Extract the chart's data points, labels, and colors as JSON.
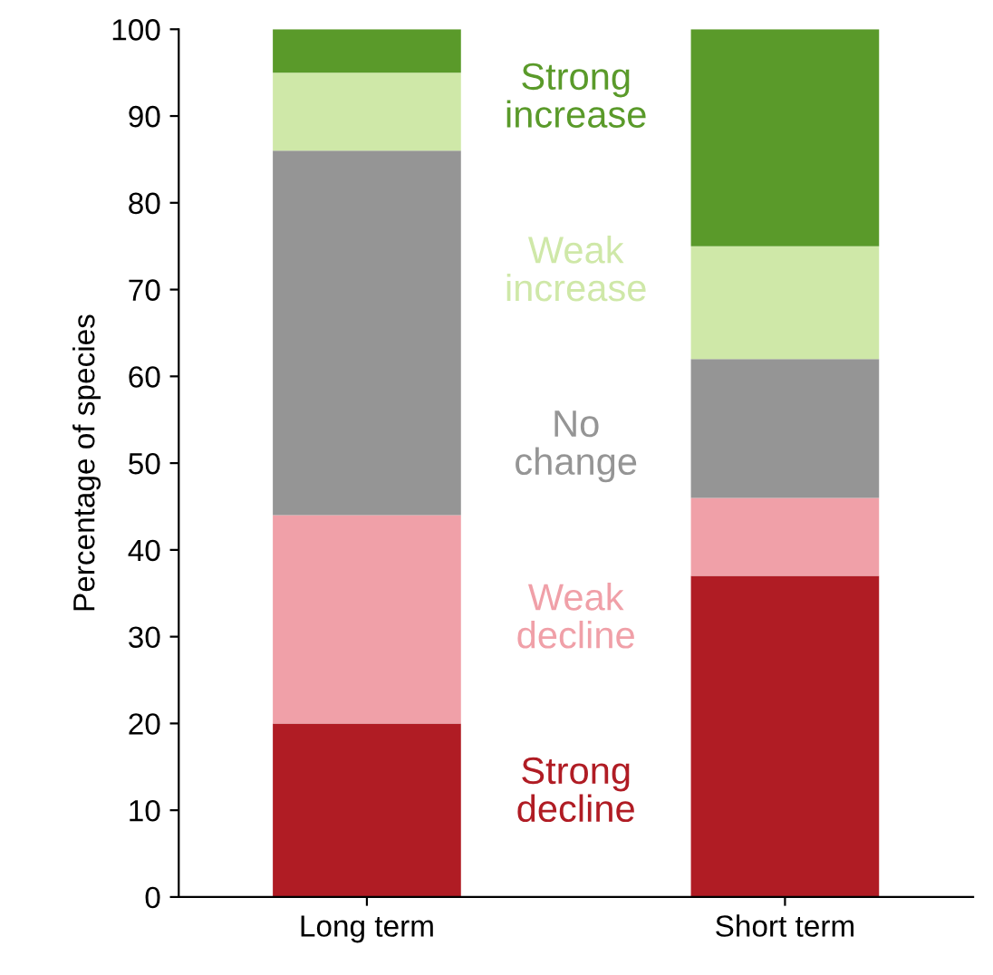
{
  "chart_data": {
    "type": "bar",
    "stacked": true,
    "ylabel": "Percentage of species",
    "categories": [
      "Long term",
      "Short term"
    ],
    "series": [
      {
        "name": "Strong\ndecline",
        "color": "#b01c24",
        "values": [
          20,
          37
        ]
      },
      {
        "name": "Weak\ndecline",
        "color": "#f0a0a8",
        "values": [
          24,
          9
        ]
      },
      {
        "name": "No\nchange",
        "color": "#959595",
        "values": [
          42,
          16
        ]
      },
      {
        "name": "Weak\nincrease",
        "color": "#cfe8a8",
        "values": [
          9,
          13
        ]
      },
      {
        "name": "Strong\nincrease",
        "color": "#5a9a2a",
        "values": [
          5,
          25
        ]
      }
    ],
    "ylim": [
      0,
      100
    ],
    "yticks": [
      0,
      10,
      20,
      30,
      40,
      50,
      60,
      70,
      80,
      90,
      100
    ],
    "grid": false
  }
}
